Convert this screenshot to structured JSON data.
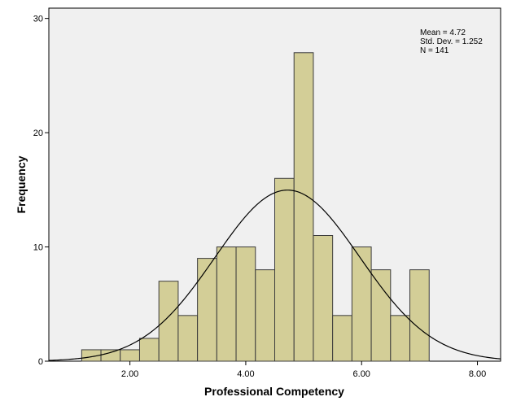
{
  "chart_data": {
    "type": "bar",
    "subtype": "histogram",
    "xlabel": "Professional Competency",
    "ylabel": "Frequency",
    "xlim": [
      0.6,
      8.4
    ],
    "ylim": [
      0,
      30.9
    ],
    "x_ticks": [
      2,
      4,
      6,
      8
    ],
    "x_tick_labels": [
      "2.00",
      "4.00",
      "6.00",
      "8.00"
    ],
    "y_ticks": [
      0,
      10,
      20,
      30
    ],
    "y_tick_labels": [
      "0",
      "10",
      "20",
      "30"
    ],
    "bin_width": 0.3333,
    "bins": [
      {
        "start": 1.1667,
        "count": 1
      },
      {
        "start": 1.5,
        "count": 1
      },
      {
        "start": 1.8333,
        "count": 1
      },
      {
        "start": 2.1667,
        "count": 2
      },
      {
        "start": 2.5,
        "count": 7
      },
      {
        "start": 2.8333,
        "count": 4
      },
      {
        "start": 3.1667,
        "count": 9
      },
      {
        "start": 3.5,
        "count": 10
      },
      {
        "start": 3.8333,
        "count": 10
      },
      {
        "start": 4.1667,
        "count": 8
      },
      {
        "start": 4.5,
        "count": 16
      },
      {
        "start": 4.8333,
        "count": 27
      },
      {
        "start": 5.1667,
        "count": 11
      },
      {
        "start": 5.5,
        "count": 4
      },
      {
        "start": 5.8333,
        "count": 10
      },
      {
        "start": 6.1667,
        "count": 8
      },
      {
        "start": 6.5,
        "count": 4
      },
      {
        "start": 6.8333,
        "count": 8
      }
    ],
    "normal_curve": {
      "mean": 4.72,
      "sd": 1.252,
      "n": 141
    },
    "stats_text": [
      "Mean = 4.72",
      "Std. Dev. = 1.252",
      "N = 141"
    ],
    "legend_position": "top-right",
    "grid": false
  },
  "colors": {
    "plot_background": "#f0f0f0",
    "bar_fill": "#d3ce97",
    "bar_stroke": "#3c3c3c",
    "curve": "#000000"
  }
}
